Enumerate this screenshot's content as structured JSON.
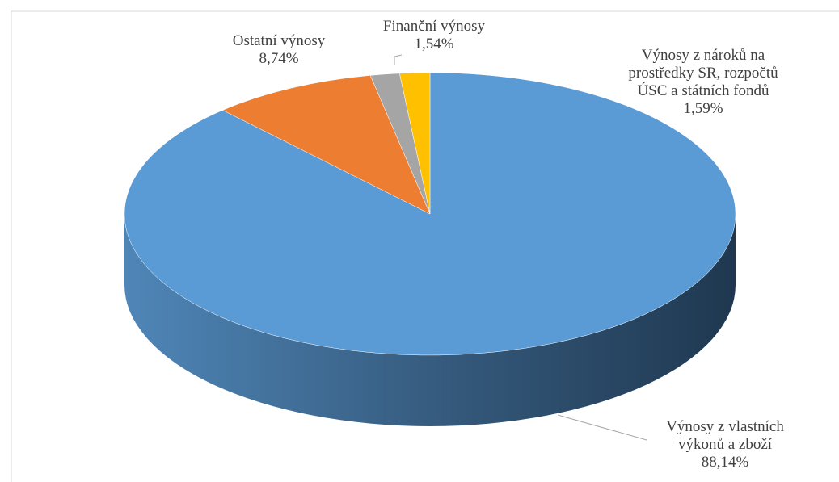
{
  "chart_data": {
    "type": "pie",
    "categories": [
      "Výnosy z vlastních výkonů a zboží",
      "Ostatní výnosy",
      "Finanční výnosy",
      "Výnosy z nároků na prostředky SR, rozpočtů ÚSC a státních fondů"
    ],
    "values": [
      88.14,
      8.74,
      1.54,
      1.59
    ],
    "value_labels": [
      "88,14%",
      "8,74%",
      "1,54%",
      "1,59%"
    ],
    "colors": [
      "#5b9bd5",
      "#ed7d31",
      "#a5a5a5",
      "#ffc000"
    ]
  }
}
